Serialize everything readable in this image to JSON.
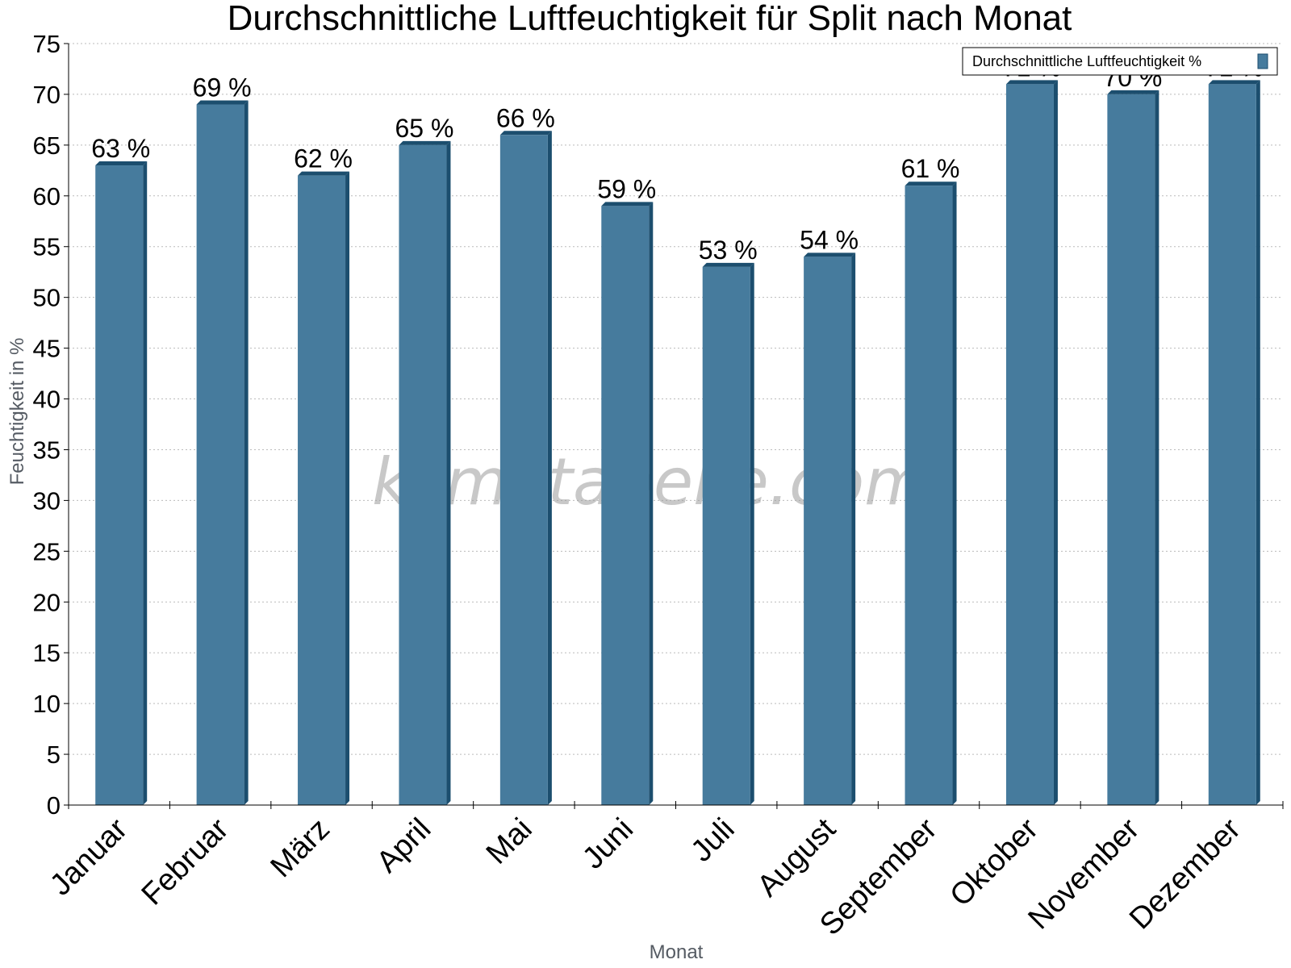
{
  "chart_data": {
    "type": "bar",
    "title": "Durchschnittliche Luftfeuchtigkeit für Split nach Monat",
    "xlabel": "Monat",
    "ylabel": "Feuchtigkeit in %",
    "categories": [
      "Januar",
      "Februar",
      "März",
      "April",
      "Mai",
      "Juni",
      "Juli",
      "August",
      "September",
      "Oktober",
      "November",
      "Dezember"
    ],
    "series": [
      {
        "name": "Durchschnittliche Luftfeuchtigkeit %",
        "values": [
          63,
          69,
          62,
          65,
          66,
          59,
          53,
          54,
          61,
          71,
          70,
          71
        ],
        "data_labels": [
          "63 %",
          "69 %",
          "62 %",
          "65 %",
          "66 %",
          "59 %",
          "53 %",
          "54 %",
          "61 %",
          "71 %",
          "70 %",
          "71 %"
        ]
      }
    ],
    "ylim": [
      0,
      75
    ],
    "yticks": [
      0,
      5,
      10,
      15,
      20,
      25,
      30,
      35,
      40,
      45,
      50,
      55,
      60,
      65,
      70,
      75
    ],
    "grid": true,
    "legend_position": "top-right",
    "colors": {
      "bar": "#467b9d",
      "bar_side": "#1c4e6e",
      "grid": "#bbbbbb"
    },
    "watermark": "klimatabelle.com"
  }
}
